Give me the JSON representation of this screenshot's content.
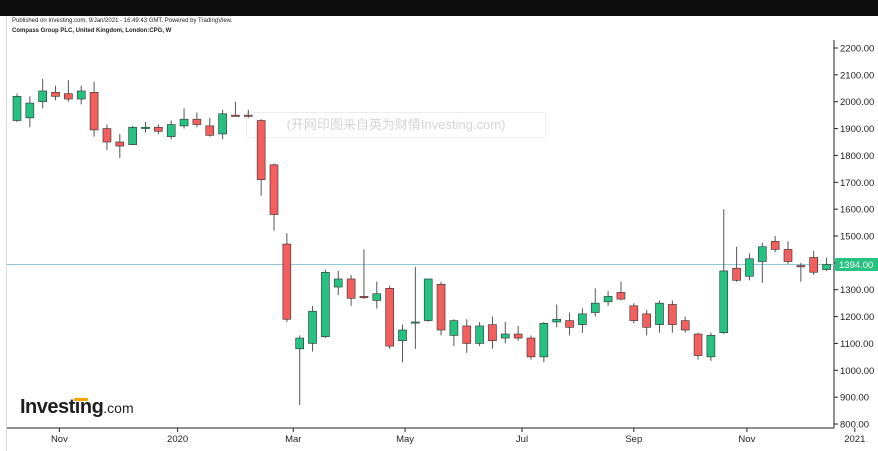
{
  "header": {
    "line1": "Published on Investing.com, 9/Jan/2021 - 16:49:43 GMT, Powered by TradingView.",
    "line2": "Compass Group PLC, United Kingdom, London:CPG, W"
  },
  "watermark": "(开网印图来自英为财情Investing.com)",
  "logo": {
    "word": "Investing",
    "suffix": ".com"
  },
  "chart_data": {
    "type": "candlestick",
    "interval": "W",
    "ylim": [
      780,
      2240
    ],
    "y_ticks": [
      "2200.00",
      "2100.00",
      "2000.00",
      "1900.00",
      "1800.00",
      "1700.00",
      "1600.00",
      "1500.00",
      "1400.00",
      "1300.00",
      "1200.00",
      "1100.00",
      "1000.00",
      "900.00",
      "800.00"
    ],
    "y_tick_values": [
      2200,
      2100,
      2000,
      1900,
      1800,
      1700,
      1600,
      1500,
      1400,
      1300,
      1200,
      1100,
      1000,
      900,
      800
    ],
    "x_ticks": [
      {
        "label": "Nov",
        "index": 3.3
      },
      {
        "label": "2020",
        "index": 12.5
      },
      {
        "label": "Mar",
        "index": 21.5
      },
      {
        "label": "May",
        "index": 30.2
      },
      {
        "label": "Jul",
        "index": 39.3
      },
      {
        "label": "Sep",
        "index": 48.0
      },
      {
        "label": "Nov",
        "index": 56.8
      },
      {
        "label": "2021",
        "index": 65.2
      }
    ],
    "last_price": 1394.0,
    "last_price_label": "1394.00",
    "colors": {
      "up": "#26c281",
      "down": "#f25f5c",
      "wick": "#555555",
      "price_line": "#8fc8d8",
      "price_box": "#26c281",
      "grid": "#000000"
    },
    "candles": [
      {
        "o": 1930,
        "h": 2030,
        "l": 1925,
        "c": 2020
      },
      {
        "o": 1940,
        "h": 2020,
        "l": 1905,
        "c": 1995
      },
      {
        "o": 2000,
        "h": 2085,
        "l": 1975,
        "c": 2040
      },
      {
        "o": 2035,
        "h": 2060,
        "l": 2005,
        "c": 2020
      },
      {
        "o": 2030,
        "h": 2080,
        "l": 2000,
        "c": 2010
      },
      {
        "o": 2010,
        "h": 2060,
        "l": 1990,
        "c": 2040
      },
      {
        "o": 2035,
        "h": 2075,
        "l": 1870,
        "c": 1895
      },
      {
        "o": 1900,
        "h": 1915,
        "l": 1820,
        "c": 1850
      },
      {
        "o": 1850,
        "h": 1880,
        "l": 1790,
        "c": 1835
      },
      {
        "o": 1840,
        "h": 1910,
        "l": 1838,
        "c": 1905
      },
      {
        "o": 1900,
        "h": 1925,
        "l": 1885,
        "c": 1905
      },
      {
        "o": 1905,
        "h": 1915,
        "l": 1880,
        "c": 1890
      },
      {
        "o": 1870,
        "h": 1930,
        "l": 1860,
        "c": 1915
      },
      {
        "o": 1910,
        "h": 1975,
        "l": 1900,
        "c": 1935
      },
      {
        "o": 1935,
        "h": 1960,
        "l": 1905,
        "c": 1915
      },
      {
        "o": 1910,
        "h": 1940,
        "l": 1870,
        "c": 1875
      },
      {
        "o": 1880,
        "h": 1970,
        "l": 1860,
        "c": 1955
      },
      {
        "o": 1950,
        "h": 2000,
        "l": 1945,
        "c": 1945
      },
      {
        "o": 1950,
        "h": 1970,
        "l": 1940,
        "c": 1948
      },
      {
        "o": 1930,
        "h": 1935,
        "l": 1650,
        "c": 1710
      },
      {
        "o": 1765,
        "h": 1770,
        "l": 1520,
        "c": 1580
      },
      {
        "o": 1470,
        "h": 1510,
        "l": 1180,
        "c": 1190
      },
      {
        "o": 1080,
        "h": 1130,
        "l": 870,
        "c": 1120
      },
      {
        "o": 1100,
        "h": 1240,
        "l": 1070,
        "c": 1220
      },
      {
        "o": 1125,
        "h": 1375,
        "l": 1120,
        "c": 1365
      },
      {
        "o": 1310,
        "h": 1370,
        "l": 1280,
        "c": 1340
      },
      {
        "o": 1340,
        "h": 1355,
        "l": 1240,
        "c": 1268
      },
      {
        "o": 1275,
        "h": 1450,
        "l": 1265,
        "c": 1270
      },
      {
        "o": 1260,
        "h": 1330,
        "l": 1230,
        "c": 1285
      },
      {
        "o": 1305,
        "h": 1315,
        "l": 1080,
        "c": 1090
      },
      {
        "o": 1110,
        "h": 1170,
        "l": 1030,
        "c": 1150
      },
      {
        "o": 1180,
        "h": 1385,
        "l": 1080,
        "c": 1180
      },
      {
        "o": 1185,
        "h": 1340,
        "l": 1180,
        "c": 1340
      },
      {
        "o": 1320,
        "h": 1330,
        "l": 1130,
        "c": 1150
      },
      {
        "o": 1130,
        "h": 1190,
        "l": 1090,
        "c": 1185
      },
      {
        "o": 1165,
        "h": 1190,
        "l": 1065,
        "c": 1100
      },
      {
        "o": 1100,
        "h": 1180,
        "l": 1090,
        "c": 1165
      },
      {
        "o": 1170,
        "h": 1200,
        "l": 1080,
        "c": 1110
      },
      {
        "o": 1120,
        "h": 1180,
        "l": 1100,
        "c": 1135
      },
      {
        "o": 1135,
        "h": 1165,
        "l": 1110,
        "c": 1120
      },
      {
        "o": 1120,
        "h": 1130,
        "l": 1040,
        "c": 1050
      },
      {
        "o": 1050,
        "h": 1180,
        "l": 1030,
        "c": 1175
      },
      {
        "o": 1180,
        "h": 1245,
        "l": 1160,
        "c": 1190
      },
      {
        "o": 1185,
        "h": 1215,
        "l": 1130,
        "c": 1160
      },
      {
        "o": 1170,
        "h": 1230,
        "l": 1140,
        "c": 1210
      },
      {
        "o": 1215,
        "h": 1305,
        "l": 1200,
        "c": 1250
      },
      {
        "o": 1255,
        "h": 1295,
        "l": 1240,
        "c": 1275
      },
      {
        "o": 1290,
        "h": 1330,
        "l": 1260,
        "c": 1265
      },
      {
        "o": 1240,
        "h": 1250,
        "l": 1175,
        "c": 1185
      },
      {
        "o": 1210,
        "h": 1225,
        "l": 1130,
        "c": 1160
      },
      {
        "o": 1170,
        "h": 1260,
        "l": 1140,
        "c": 1250
      },
      {
        "o": 1245,
        "h": 1260,
        "l": 1140,
        "c": 1170
      },
      {
        "o": 1185,
        "h": 1200,
        "l": 1140,
        "c": 1150
      },
      {
        "o": 1135,
        "h": 1140,
        "l": 1040,
        "c": 1055
      },
      {
        "o": 1050,
        "h": 1140,
        "l": 1035,
        "c": 1130
      },
      {
        "o": 1140,
        "h": 1600,
        "l": 1135,
        "c": 1370
      },
      {
        "o": 1380,
        "h": 1460,
        "l": 1330,
        "c": 1335
      },
      {
        "o": 1350,
        "h": 1435,
        "l": 1335,
        "c": 1415
      },
      {
        "o": 1405,
        "h": 1475,
        "l": 1325,
        "c": 1460
      },
      {
        "o": 1480,
        "h": 1500,
        "l": 1440,
        "c": 1450
      },
      {
        "o": 1450,
        "h": 1480,
        "l": 1395,
        "c": 1405
      },
      {
        "o": 1390,
        "h": 1400,
        "l": 1330,
        "c": 1385
      },
      {
        "o": 1420,
        "h": 1445,
        "l": 1355,
        "c": 1365
      },
      {
        "o": 1375,
        "h": 1420,
        "l": 1370,
        "c": 1394
      }
    ]
  }
}
